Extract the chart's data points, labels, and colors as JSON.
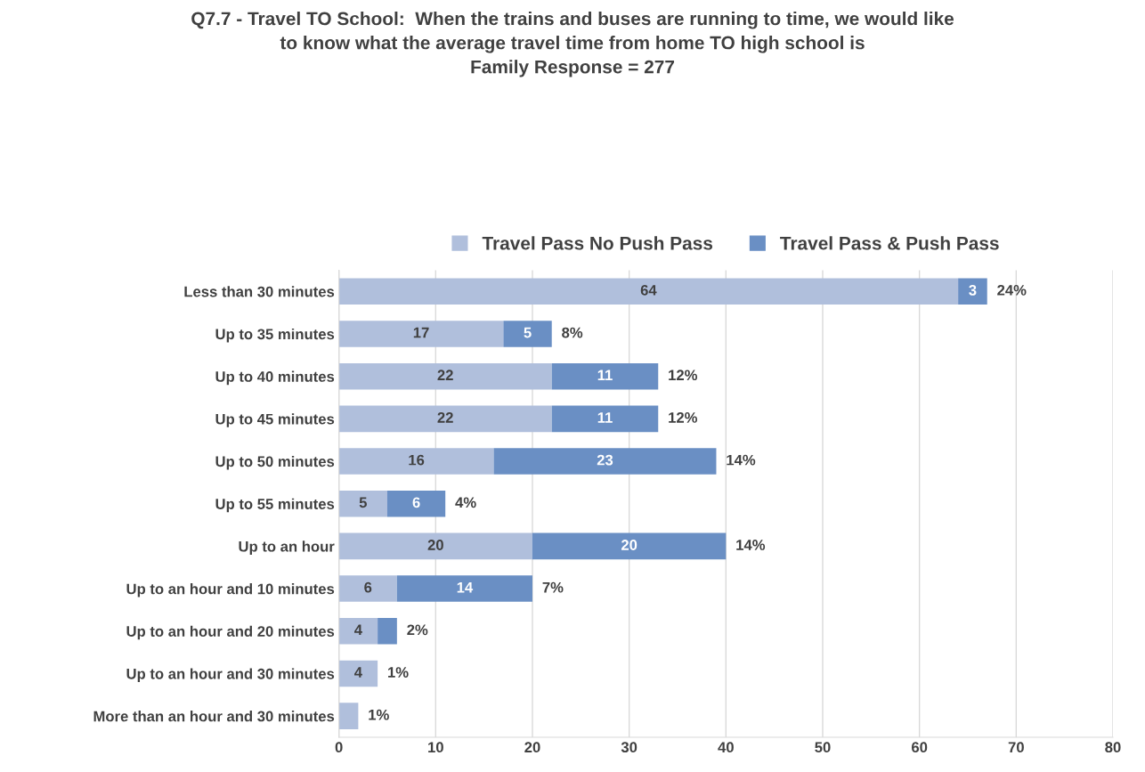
{
  "chart_data": {
    "type": "bar",
    "orientation": "horizontal",
    "stacked": true,
    "title": "Q7.7 - Travel TO School:  When the trains and buses are running to time, we would like\nto know what the average travel time from home TO high school is\nFamily Response = 277",
    "categories": [
      "Less than 30 minutes",
      "Up to 35 minutes",
      "Up to 40 minutes",
      "Up to 45 minutes",
      "Up to 50 minutes",
      "Up to 55 minutes",
      "Up to an hour",
      "Up to an hour and 10 minutes",
      "Up to an hour and 20 minutes",
      "Up to an hour and 30 minutes",
      "More than an hour and 30 minutes"
    ],
    "series": [
      {
        "name": "Travel Pass No Push Pass",
        "color": "#b0bfdc",
        "values": [
          64,
          17,
          22,
          22,
          16,
          5,
          20,
          6,
          4,
          4,
          2
        ],
        "value_labels": [
          "64",
          "17",
          "22",
          "22",
          "16",
          "5",
          "20",
          "6",
          "4",
          "4",
          null
        ]
      },
      {
        "name": "Travel Pass & Push Pass",
        "color": "#6a8fc4",
        "values": [
          3,
          5,
          11,
          11,
          23,
          6,
          20,
          14,
          2,
          null,
          null
        ],
        "value_labels": [
          "3",
          "5",
          "11",
          "11",
          "23",
          "6",
          "20",
          "14",
          null,
          null,
          null
        ]
      }
    ],
    "annotations": [
      {
        "text": "24%",
        "x": 67,
        "y": "Less than 30 minutes"
      },
      {
        "text": "8%",
        "x": 22,
        "y": "Up to 35 minutes"
      },
      {
        "text": "12%",
        "x": 33,
        "y": "Up to 40 minutes"
      },
      {
        "text": "12%",
        "x": 33,
        "y": "Up to 45 minutes"
      },
      {
        "text": "14%",
        "x": 39,
        "y": "Up to 50 minutes"
      },
      {
        "text": "4%",
        "x": 11,
        "y": "Up to 55 minutes"
      },
      {
        "text": "14%",
        "x": 40,
        "y": "Up to an hour"
      },
      {
        "text": "7%",
        "x": 20,
        "y": "Up to an hour and 10 minutes"
      },
      {
        "text": "2%",
        "x": 6,
        "y": "Up to an hour and 20 minutes"
      },
      {
        "text": "1%",
        "x": 4,
        "y": "Up to an hour and 30 minutes"
      },
      {
        "text": "1%",
        "x": 2,
        "y": "More than an hour and 30 minutes"
      }
    ],
    "xlim": [
      0,
      80
    ],
    "xticks": [
      0,
      10,
      20,
      30,
      40,
      50,
      60,
      70,
      80
    ],
    "grid": "x",
    "legend": "top"
  }
}
